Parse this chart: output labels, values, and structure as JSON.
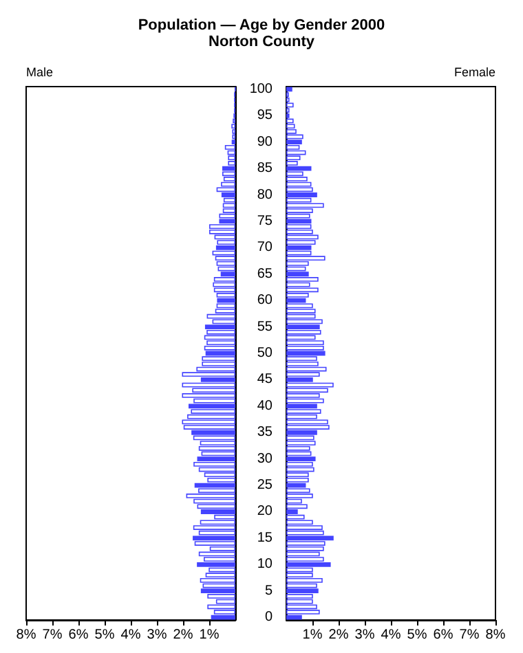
{
  "chart_data": [
    {
      "type": "bar",
      "orientation": "horizontal",
      "title": "Population — Age by Gender 2000",
      "subtitle": "Norton County",
      "tick_labels": "x",
      "categories": [
        "100",
        null,
        null,
        null,
        null,
        "95",
        null,
        null,
        null,
        null,
        "90",
        null,
        null,
        null,
        null,
        "85",
        null,
        null,
        null,
        null,
        "80",
        null,
        null,
        null,
        null,
        "75",
        null,
        null,
        null,
        null,
        "70",
        null,
        null,
        null,
        null,
        "65",
        null,
        null,
        null,
        null,
        "60",
        null,
        null,
        null,
        null,
        "55",
        null,
        null,
        null,
        null,
        "50",
        null,
        null,
        null,
        null,
        "45",
        null,
        null,
        null,
        null,
        "40",
        null,
        null,
        null,
        null,
        "35",
        null,
        null,
        null,
        null,
        "30",
        null,
        null,
        null,
        null,
        "25",
        null,
        null,
        null,
        null,
        "20",
        null,
        null,
        null,
        null,
        "15",
        null,
        null,
        null,
        null,
        "10",
        null,
        null,
        null,
        null,
        "5",
        null,
        null,
        null,
        null,
        "0"
      ],
      "xlim": [
        8,
        0
      ],
      "xticks": [
        {
          "value": 8,
          "label": "8%"
        },
        {
          "value": 7,
          "label": "7%"
        },
        {
          "value": 6,
          "label": "6%"
        },
        {
          "value": 5,
          "label": "5%"
        },
        {
          "value": 4,
          "label": "4%"
        },
        {
          "value": 3,
          "label": "3%"
        },
        {
          "value": 2,
          "label": "2%"
        },
        {
          "value": 1,
          "label": "1%"
        }
      ],
      "series": [
        {
          "name": "Male",
          "values": [
            0,
            0.05,
            0.05,
            0.05,
            0.05,
            0.07,
            0.1,
            0.15,
            0.12,
            0.12,
            0.14,
            0.4,
            0.3,
            0.28,
            0.28,
            0.5,
            0.5,
            0.45,
            0.55,
            0.72,
            0.53,
            0.45,
            0.48,
            0.48,
            0.62,
            0.62,
            1.0,
            1.0,
            0.8,
            0.7,
            0.74,
            0.88,
            0.77,
            0.72,
            0.67,
            0.56,
            0.82,
            0.86,
            0.82,
            0.72,
            0.7,
            0.72,
            0.77,
            1.09,
            0.88,
            1.16,
            1.1,
            1.19,
            1.1,
            1.19,
            1.14,
            1.28,
            1.28,
            1.49,
            2.04,
            1.32,
            2.04,
            1.65,
            2.04,
            1.6,
            1.79,
            1.7,
            1.84,
            2.04,
            1.98,
            1.68,
            1.61,
            1.35,
            1.4,
            1.3,
            1.46,
            1.6,
            1.4,
            1.19,
            1.07,
            1.56,
            1.42,
            1.88,
            1.6,
            1.46,
            1.32,
            0.81,
            1.35,
            1.61,
            1.4,
            1.63,
            1.56,
            0.98,
            1.4,
            1.21,
            1.47,
            1.02,
            1.14,
            1.35,
            1.25,
            1.32,
            1.07,
            0.74,
            1.07,
            0.82,
            0.93
          ],
          "colors": [
            "#4444ff",
            "#ffffff",
            "#ffffff",
            "#ffffff",
            "#ffffff",
            "#4444ff",
            "#ffffff",
            "#ffffff",
            "#ffffff",
            "#ffffff",
            "#4444ff",
            "#ffffff",
            "#ffffff",
            "#ffffff",
            "#ffffff",
            "#4444ff",
            "#ffffff",
            "#ffffff",
            "#ffffff",
            "#ffffff",
            "#4444ff",
            "#ffffff",
            "#ffffff",
            "#ffffff",
            "#ffffff",
            "#4444ff",
            "#ffffff",
            "#ffffff",
            "#ffffff",
            "#ffffff",
            "#4444ff",
            "#ffffff",
            "#ffffff",
            "#ffffff",
            "#ffffff",
            "#4444ff",
            "#ffffff",
            "#ffffff",
            "#ffffff",
            "#ffffff",
            "#4444ff",
            "#ffffff",
            "#ffffff",
            "#ffffff",
            "#ffffff",
            "#4444ff",
            "#ffffff",
            "#ffffff",
            "#ffffff",
            "#ffffff",
            "#4444ff",
            "#ffffff",
            "#ffffff",
            "#ffffff",
            "#ffffff",
            "#4444ff",
            "#ffffff",
            "#ffffff",
            "#ffffff",
            "#ffffff",
            "#4444ff",
            "#ffffff",
            "#ffffff",
            "#ffffff",
            "#ffffff",
            "#4444ff",
            "#ffffff",
            "#ffffff",
            "#ffffff",
            "#ffffff",
            "#4444ff",
            "#ffffff",
            "#ffffff",
            "#ffffff",
            "#ffffff",
            "#4444ff",
            "#ffffff",
            "#ffffff",
            "#ffffff",
            "#ffffff",
            "#4444ff",
            "#ffffff",
            "#ffffff",
            "#ffffff",
            "#ffffff",
            "#4444ff",
            "#ffffff",
            "#ffffff",
            "#ffffff",
            "#ffffff",
            "#4444ff",
            "#ffffff",
            "#ffffff",
            "#ffffff",
            "#ffffff",
            "#4444ff",
            "#ffffff",
            "#ffffff",
            "#ffffff",
            "#ffffff",
            "#4444ff"
          ]
        }
      ]
    },
    {
      "type": "bar",
      "orientation": "horizontal",
      "categories": [
        "100",
        null,
        null,
        null,
        null,
        "95",
        null,
        null,
        null,
        null,
        "90",
        null,
        null,
        null,
        null,
        "85",
        null,
        null,
        null,
        null,
        "80",
        null,
        null,
        null,
        null,
        "75",
        null,
        null,
        null,
        null,
        "70",
        null,
        null,
        null,
        null,
        "65",
        null,
        null,
        null,
        null,
        "60",
        null,
        null,
        null,
        null,
        "55",
        null,
        null,
        null,
        null,
        "50",
        null,
        null,
        null,
        null,
        "45",
        null,
        null,
        null,
        null,
        "40",
        null,
        null,
        null,
        null,
        "35",
        null,
        null,
        null,
        null,
        "30",
        null,
        null,
        null,
        null,
        "25",
        null,
        null,
        null,
        null,
        "20",
        null,
        null,
        null,
        null,
        "15",
        null,
        null,
        null,
        null,
        "10",
        null,
        null,
        null,
        null,
        "5",
        null,
        null,
        null,
        null,
        "0"
      ],
      "xlim": [
        0,
        8
      ],
      "xticks": [
        {
          "value": 1,
          "label": "1%"
        },
        {
          "value": 2,
          "label": "2%"
        },
        {
          "value": 3,
          "label": "3%"
        },
        {
          "value": 4,
          "label": "4%"
        },
        {
          "value": 5,
          "label": "5%"
        },
        {
          "value": 6,
          "label": "6%"
        },
        {
          "value": 7,
          "label": "7%"
        },
        {
          "value": 8,
          "label": "8%"
        }
      ],
      "series": [
        {
          "name": "Female",
          "values": [
            0.23,
            0.1,
            0.12,
            0.28,
            0.12,
            0.12,
            0.28,
            0.33,
            0.39,
            0.65,
            0.6,
            0.51,
            0.75,
            0.54,
            0.44,
            0.96,
            0.65,
            0.81,
            0.96,
            1.02,
            1.18,
            0.96,
            1.44,
            1.02,
            0.91,
            0.96,
            0.96,
            1.02,
            1.23,
            1.12,
            0.96,
            0.96,
            1.49,
            0.86,
            0.75,
            0.86,
            1.23,
            0.91,
            1.23,
            0.86,
            0.75,
            1.02,
            1.12,
            1.12,
            1.39,
            1.28,
            1.33,
            1.12,
            1.44,
            1.44,
            1.49,
            1.18,
            1.23,
            1.54,
            1.28,
            1.02,
            1.81,
            1.6,
            1.28,
            1.44,
            1.18,
            1.33,
            1.18,
            1.6,
            1.65,
            1.18,
            1.07,
            1.12,
            0.91,
            0.96,
            1.12,
            1.02,
            1.07,
            0.86,
            0.86,
            0.75,
            0.91,
            1.02,
            0.6,
            0.81,
            0.44,
            0.7,
            1.02,
            1.39,
            1.44,
            1.81,
            1.49,
            1.44,
            1.28,
            1.44,
            1.7,
            1.02,
            1.02,
            1.39,
            1.18,
            1.23,
            1.02,
            1.02,
            1.18,
            1.28,
            0.6
          ],
          "colors": [
            "#4444ff",
            "#ffffff",
            "#ffffff",
            "#ffffff",
            "#ffffff",
            "#4444ff",
            "#ffffff",
            "#ffffff",
            "#ffffff",
            "#ffffff",
            "#4444ff",
            "#ffffff",
            "#ffffff",
            "#ffffff",
            "#ffffff",
            "#4444ff",
            "#ffffff",
            "#ffffff",
            "#ffffff",
            "#ffffff",
            "#4444ff",
            "#ffffff",
            "#ffffff",
            "#ffffff",
            "#ffffff",
            "#4444ff",
            "#ffffff",
            "#ffffff",
            "#ffffff",
            "#ffffff",
            "#4444ff",
            "#ffffff",
            "#ffffff",
            "#ffffff",
            "#ffffff",
            "#4444ff",
            "#ffffff",
            "#ffffff",
            "#ffffff",
            "#ffffff",
            "#4444ff",
            "#ffffff",
            "#ffffff",
            "#ffffff",
            "#ffffff",
            "#4444ff",
            "#ffffff",
            "#ffffff",
            "#ffffff",
            "#ffffff",
            "#4444ff",
            "#ffffff",
            "#ffffff",
            "#ffffff",
            "#ffffff",
            "#4444ff",
            "#ffffff",
            "#ffffff",
            "#ffffff",
            "#ffffff",
            "#4444ff",
            "#ffffff",
            "#ffffff",
            "#ffffff",
            "#ffffff",
            "#4444ff",
            "#ffffff",
            "#ffffff",
            "#ffffff",
            "#ffffff",
            "#4444ff",
            "#ffffff",
            "#ffffff",
            "#ffffff",
            "#ffffff",
            "#4444ff",
            "#ffffff",
            "#ffffff",
            "#ffffff",
            "#ffffff",
            "#4444ff",
            "#ffffff",
            "#ffffff",
            "#ffffff",
            "#ffffff",
            "#4444ff",
            "#ffffff",
            "#ffffff",
            "#ffffff",
            "#ffffff",
            "#4444ff",
            "#ffffff",
            "#ffffff",
            "#ffffff",
            "#ffffff",
            "#4444ff",
            "#ffffff",
            "#ffffff",
            "#ffffff",
            "#ffffff",
            "#4444ff"
          ]
        }
      ]
    }
  ]
}
